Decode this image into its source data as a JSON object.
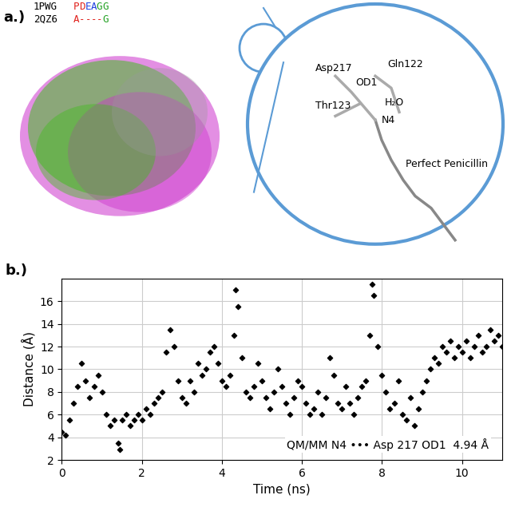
{
  "panel_a": {
    "label": "a.)",
    "alignment": [
      {
        "id": "1PWG",
        "sequence": "PDEAGG",
        "colors": [
          "#e0201b",
          "#e0201b",
          "#2040e0",
          "#2040e0",
          "#20a020",
          "#20a020"
        ]
      },
      {
        "id": "2QZ6",
        "sequence": "A----G",
        "colors": [
          "#e0201b",
          "#e0201b",
          "#e0201b",
          "#e0201b",
          "#e0201b",
          "#20a020"
        ]
      }
    ],
    "structure_labels": [
      "Asp217",
      "OD1",
      "Gln122",
      "Thr123",
      "H₂O",
      "N4",
      "Perfect Penicillin"
    ]
  },
  "chart_data": {
    "type": "scatter",
    "label": "b.)",
    "x_label": "Time (ns)",
    "y_label": "Distance (Å)",
    "annotation": "QM/MM N4 ••• Asp 217 OD1  4.94 Å",
    "color": "#000000",
    "marker": "D",
    "grid": true,
    "xlim": [
      0,
      11
    ],
    "ylim": [
      2,
      18
    ],
    "xticks": [
      0,
      2,
      4,
      6,
      8,
      10
    ],
    "yticks": [
      2,
      4,
      6,
      8,
      10,
      12,
      14,
      16
    ],
    "x": [
      0.0,
      0.1,
      0.2,
      0.3,
      0.4,
      0.5,
      0.6,
      0.7,
      0.8,
      0.9,
      1.0,
      1.1,
      1.2,
      1.3,
      1.4,
      1.45,
      1.5,
      1.6,
      1.7,
      1.8,
      1.9,
      2.0,
      2.1,
      2.2,
      2.3,
      2.4,
      2.5,
      2.6,
      2.7,
      2.8,
      2.9,
      3.0,
      3.1,
      3.2,
      3.3,
      3.4,
      3.5,
      3.6,
      3.7,
      3.8,
      3.9,
      4.0,
      4.1,
      4.2,
      4.3,
      4.35,
      4.4,
      4.5,
      4.6,
      4.7,
      4.8,
      4.9,
      5.0,
      5.1,
      5.2,
      5.3,
      5.4,
      5.5,
      5.6,
      5.7,
      5.8,
      5.9,
      6.0,
      6.1,
      6.2,
      6.3,
      6.4,
      6.5,
      6.6,
      6.7,
      6.8,
      6.9,
      7.0,
      7.1,
      7.2,
      7.3,
      7.4,
      7.5,
      7.6,
      7.7,
      7.75,
      7.8,
      7.9,
      8.0,
      8.1,
      8.2,
      8.3,
      8.4,
      8.5,
      8.6,
      8.7,
      8.8,
      8.9,
      9.0,
      9.1,
      9.2,
      9.3,
      9.4,
      9.5,
      9.6,
      9.7,
      9.8,
      9.9,
      10.0,
      10.1,
      10.2,
      10.3,
      10.4,
      10.5,
      10.6,
      10.7,
      10.8,
      10.9,
      11.0
    ],
    "values": [
      4.5,
      4.2,
      5.5,
      7.0,
      8.5,
      10.5,
      9.0,
      7.5,
      8.5,
      9.5,
      8.0,
      6.0,
      5.0,
      5.5,
      3.5,
      2.9,
      5.5,
      6.0,
      5.0,
      5.5,
      6.0,
      5.5,
      6.5,
      6.0,
      7.0,
      7.5,
      8.0,
      11.5,
      13.5,
      12.0,
      9.0,
      7.5,
      7.0,
      9.0,
      8.0,
      10.5,
      9.5,
      10.0,
      11.5,
      12.0,
      10.5,
      9.0,
      8.5,
      9.5,
      13.0,
      17.0,
      15.5,
      11.0,
      8.0,
      7.5,
      8.5,
      10.5,
      9.0,
      7.5,
      6.5,
      8.0,
      10.0,
      8.5,
      7.0,
      6.0,
      7.5,
      9.0,
      8.5,
      7.0,
      6.0,
      6.5,
      8.0,
      6.0,
      7.5,
      11.0,
      9.5,
      7.0,
      6.5,
      8.5,
      7.0,
      6.0,
      7.5,
      8.5,
      9.0,
      13.0,
      17.5,
      16.5,
      12.0,
      9.5,
      8.0,
      6.5,
      7.0,
      9.0,
      6.0,
      5.5,
      7.5,
      5.0,
      6.5,
      8.0,
      9.0,
      10.0,
      11.0,
      10.5,
      12.0,
      11.5,
      12.5,
      11.0,
      12.0,
      11.5,
      12.5,
      11.0,
      12.0,
      13.0,
      11.5,
      12.0,
      13.5,
      12.5,
      13.0,
      12.0
    ]
  }
}
